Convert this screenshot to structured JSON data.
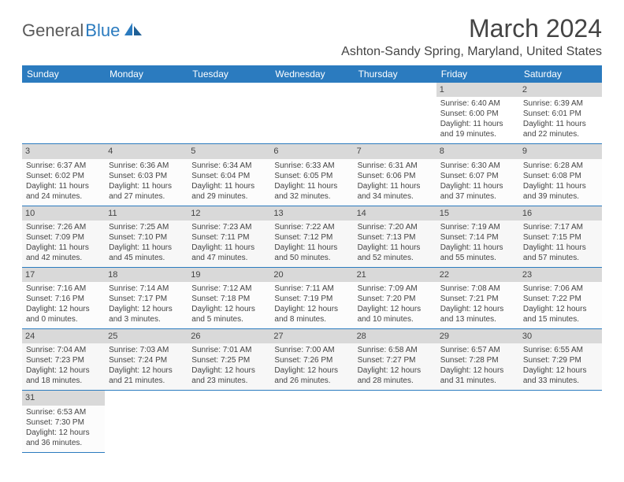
{
  "logo": {
    "text1": "General",
    "text2": "Blue"
  },
  "header": {
    "month": "March 2024",
    "location": "Ashton-Sandy Spring, Maryland, United States"
  },
  "colors": {
    "header_bg": "#2b7bbf",
    "header_text": "#ffffff",
    "daynum_bg": "#d9d9d9",
    "cell_border": "#2b7bbf",
    "text": "#444444"
  },
  "weekdays": [
    "Sunday",
    "Monday",
    "Tuesday",
    "Wednesday",
    "Thursday",
    "Friday",
    "Saturday"
  ],
  "first_weekday_index": 5,
  "days": [
    {
      "n": 1,
      "sr": "6:40 AM",
      "ss": "6:00 PM",
      "dl": "11 hours and 19 minutes."
    },
    {
      "n": 2,
      "sr": "6:39 AM",
      "ss": "6:01 PM",
      "dl": "11 hours and 22 minutes."
    },
    {
      "n": 3,
      "sr": "6:37 AM",
      "ss": "6:02 PM",
      "dl": "11 hours and 24 minutes."
    },
    {
      "n": 4,
      "sr": "6:36 AM",
      "ss": "6:03 PM",
      "dl": "11 hours and 27 minutes."
    },
    {
      "n": 5,
      "sr": "6:34 AM",
      "ss": "6:04 PM",
      "dl": "11 hours and 29 minutes."
    },
    {
      "n": 6,
      "sr": "6:33 AM",
      "ss": "6:05 PM",
      "dl": "11 hours and 32 minutes."
    },
    {
      "n": 7,
      "sr": "6:31 AM",
      "ss": "6:06 PM",
      "dl": "11 hours and 34 minutes."
    },
    {
      "n": 8,
      "sr": "6:30 AM",
      "ss": "6:07 PM",
      "dl": "11 hours and 37 minutes."
    },
    {
      "n": 9,
      "sr": "6:28 AM",
      "ss": "6:08 PM",
      "dl": "11 hours and 39 minutes."
    },
    {
      "n": 10,
      "sr": "7:26 AM",
      "ss": "7:09 PM",
      "dl": "11 hours and 42 minutes."
    },
    {
      "n": 11,
      "sr": "7:25 AM",
      "ss": "7:10 PM",
      "dl": "11 hours and 45 minutes."
    },
    {
      "n": 12,
      "sr": "7:23 AM",
      "ss": "7:11 PM",
      "dl": "11 hours and 47 minutes."
    },
    {
      "n": 13,
      "sr": "7:22 AM",
      "ss": "7:12 PM",
      "dl": "11 hours and 50 minutes."
    },
    {
      "n": 14,
      "sr": "7:20 AM",
      "ss": "7:13 PM",
      "dl": "11 hours and 52 minutes."
    },
    {
      "n": 15,
      "sr": "7:19 AM",
      "ss": "7:14 PM",
      "dl": "11 hours and 55 minutes."
    },
    {
      "n": 16,
      "sr": "7:17 AM",
      "ss": "7:15 PM",
      "dl": "11 hours and 57 minutes."
    },
    {
      "n": 17,
      "sr": "7:16 AM",
      "ss": "7:16 PM",
      "dl": "12 hours and 0 minutes."
    },
    {
      "n": 18,
      "sr": "7:14 AM",
      "ss": "7:17 PM",
      "dl": "12 hours and 3 minutes."
    },
    {
      "n": 19,
      "sr": "7:12 AM",
      "ss": "7:18 PM",
      "dl": "12 hours and 5 minutes."
    },
    {
      "n": 20,
      "sr": "7:11 AM",
      "ss": "7:19 PM",
      "dl": "12 hours and 8 minutes."
    },
    {
      "n": 21,
      "sr": "7:09 AM",
      "ss": "7:20 PM",
      "dl": "12 hours and 10 minutes."
    },
    {
      "n": 22,
      "sr": "7:08 AM",
      "ss": "7:21 PM",
      "dl": "12 hours and 13 minutes."
    },
    {
      "n": 23,
      "sr": "7:06 AM",
      "ss": "7:22 PM",
      "dl": "12 hours and 15 minutes."
    },
    {
      "n": 24,
      "sr": "7:04 AM",
      "ss": "7:23 PM",
      "dl": "12 hours and 18 minutes."
    },
    {
      "n": 25,
      "sr": "7:03 AM",
      "ss": "7:24 PM",
      "dl": "12 hours and 21 minutes."
    },
    {
      "n": 26,
      "sr": "7:01 AM",
      "ss": "7:25 PM",
      "dl": "12 hours and 23 minutes."
    },
    {
      "n": 27,
      "sr": "7:00 AM",
      "ss": "7:26 PM",
      "dl": "12 hours and 26 minutes."
    },
    {
      "n": 28,
      "sr": "6:58 AM",
      "ss": "7:27 PM",
      "dl": "12 hours and 28 minutes."
    },
    {
      "n": 29,
      "sr": "6:57 AM",
      "ss": "7:28 PM",
      "dl": "12 hours and 31 minutes."
    },
    {
      "n": 30,
      "sr": "6:55 AM",
      "ss": "7:29 PM",
      "dl": "12 hours and 33 minutes."
    },
    {
      "n": 31,
      "sr": "6:53 AM",
      "ss": "7:30 PM",
      "dl": "12 hours and 36 minutes."
    }
  ],
  "labels": {
    "sunrise": "Sunrise:",
    "sunset": "Sunset:",
    "daylight": "Daylight:"
  }
}
